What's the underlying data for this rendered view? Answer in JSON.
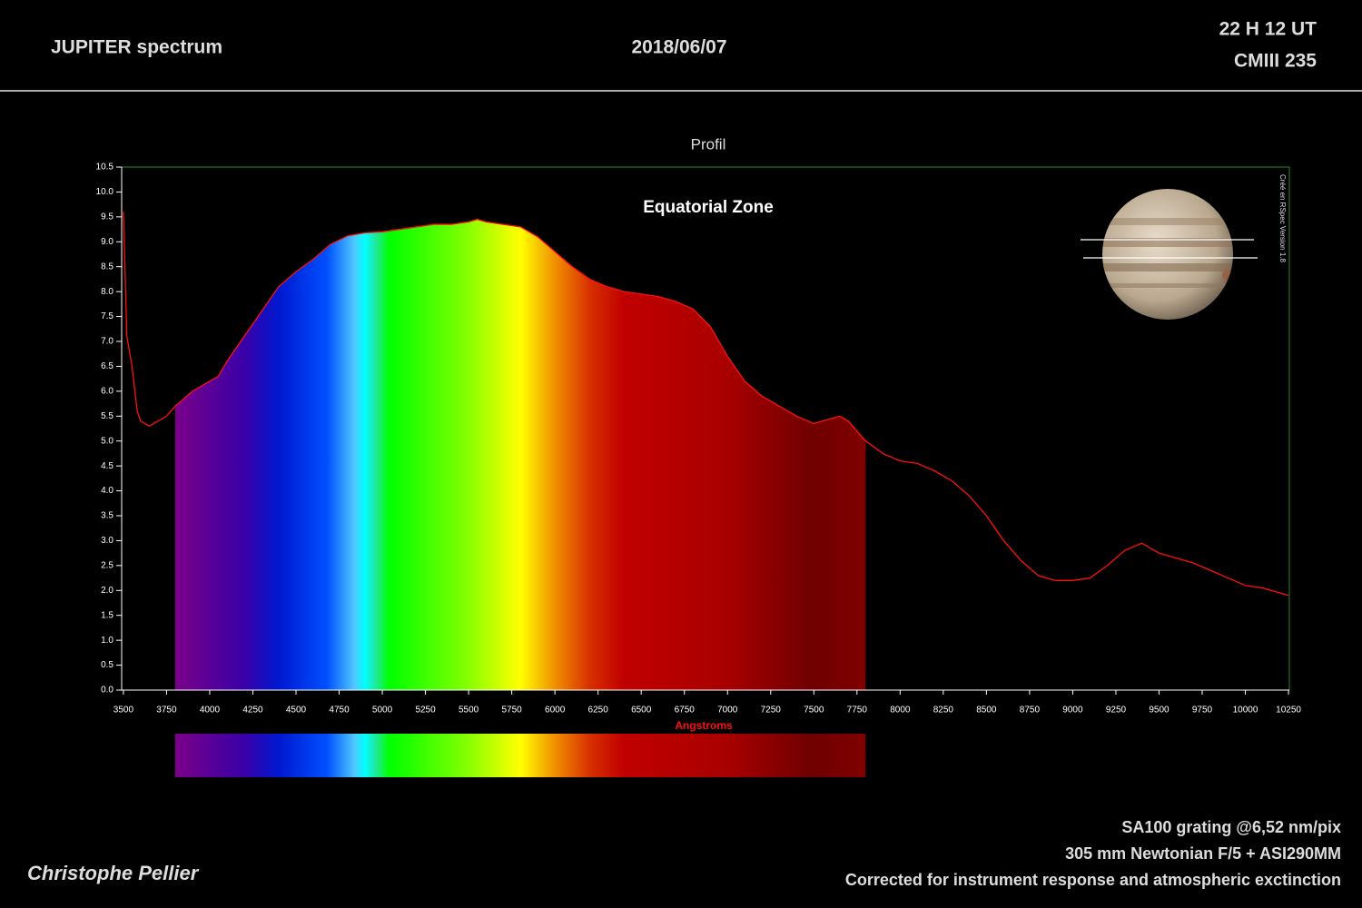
{
  "header": {
    "title": "JUPITER spectrum",
    "date": "2018/06/07",
    "time": "22 H 12 UT",
    "cm": "CMIII 235"
  },
  "footer": {
    "lines": [
      "SA100 grating @6,52 nm/pix",
      "305 mm Newtonian F/5 + ASI290MM",
      "Corrected for instrument response and atmospheric exctinction"
    ],
    "author": "Christophe Pellier"
  },
  "chart_data": {
    "type": "line",
    "title": "Profil",
    "annotation": "Equatorial Zone",
    "xlabel": "Angstroms",
    "credit": "Créé en RSpec Version 1.8",
    "color": "#ff1010",
    "fill_xrange": [
      3800,
      7800
    ],
    "x": [
      3500,
      3520,
      3550,
      3580,
      3600,
      3650,
      3700,
      3750,
      3800,
      3900,
      4000,
      4050,
      4100,
      4200,
      4300,
      4400,
      4500,
      4600,
      4700,
      4800,
      4900,
      5000,
      5100,
      5200,
      5300,
      5400,
      5500,
      5550,
      5600,
      5700,
      5800,
      5900,
      6000,
      6100,
      6200,
      6300,
      6400,
      6500,
      6600,
      6700,
      6800,
      6900,
      7000,
      7100,
      7200,
      7300,
      7400,
      7500,
      7550,
      7650,
      7700,
      7800,
      7900,
      8000,
      8100,
      8200,
      8300,
      8400,
      8500,
      8600,
      8700,
      8800,
      8900,
      9000,
      9100,
      9200,
      9300,
      9400,
      9500,
      9600,
      9700,
      9800,
      9900,
      10000,
      10100,
      10200,
      10250
    ],
    "values": [
      9.6,
      7.1,
      6.5,
      5.6,
      5.4,
      5.3,
      5.4,
      5.5,
      5.7,
      6.0,
      6.2,
      6.3,
      6.6,
      7.1,
      7.6,
      8.1,
      8.4,
      8.65,
      8.95,
      9.12,
      9.18,
      9.2,
      9.25,
      9.3,
      9.35,
      9.35,
      9.4,
      9.45,
      9.4,
      9.35,
      9.3,
      9.1,
      8.8,
      8.5,
      8.25,
      8.1,
      8.0,
      7.95,
      7.9,
      7.8,
      7.65,
      7.3,
      6.7,
      6.2,
      5.9,
      5.7,
      5.5,
      5.35,
      5.4,
      5.5,
      5.4,
      5.0,
      4.75,
      4.6,
      4.55,
      4.4,
      4.2,
      3.9,
      3.5,
      3.0,
      2.6,
      2.3,
      2.2,
      2.2,
      2.25,
      2.5,
      2.8,
      2.95,
      2.75,
      2.65,
      2.55,
      2.4,
      2.25,
      2.1,
      2.05,
      1.95,
      1.9
    ],
    "xlim": [
      3490,
      10255
    ],
    "xticks": [
      3500,
      3750,
      4000,
      4250,
      4500,
      4750,
      5000,
      5250,
      5500,
      5750,
      6000,
      6250,
      6500,
      6750,
      7000,
      7250,
      7500,
      7750,
      8000,
      8250,
      8500,
      8750,
      9000,
      9250,
      9500,
      9750,
      10000,
      10250
    ],
    "ylim": [
      0,
      10.5
    ],
    "yticks": [
      {
        "value": 0,
        "label": "0.0"
      },
      0.5,
      {
        "value": 1,
        "label": "1.0"
      },
      1.5,
      {
        "value": 2,
        "label": "2.0"
      },
      2.5,
      {
        "value": 3,
        "label": "3.0"
      },
      3.5,
      {
        "value": 4,
        "label": "4.0"
      },
      4.5,
      {
        "value": 5,
        "label": "5.0"
      },
      5.5,
      {
        "value": 6,
        "label": "6.0"
      },
      6.5,
      {
        "value": 7,
        "label": "7.0"
      },
      7.5,
      {
        "value": 8,
        "label": "8.0"
      },
      8.5,
      {
        "value": 9,
        "label": "9.0"
      },
      9.5,
      {
        "value": 10,
        "label": "10.0"
      },
      10.5
    ],
    "grid": false
  }
}
